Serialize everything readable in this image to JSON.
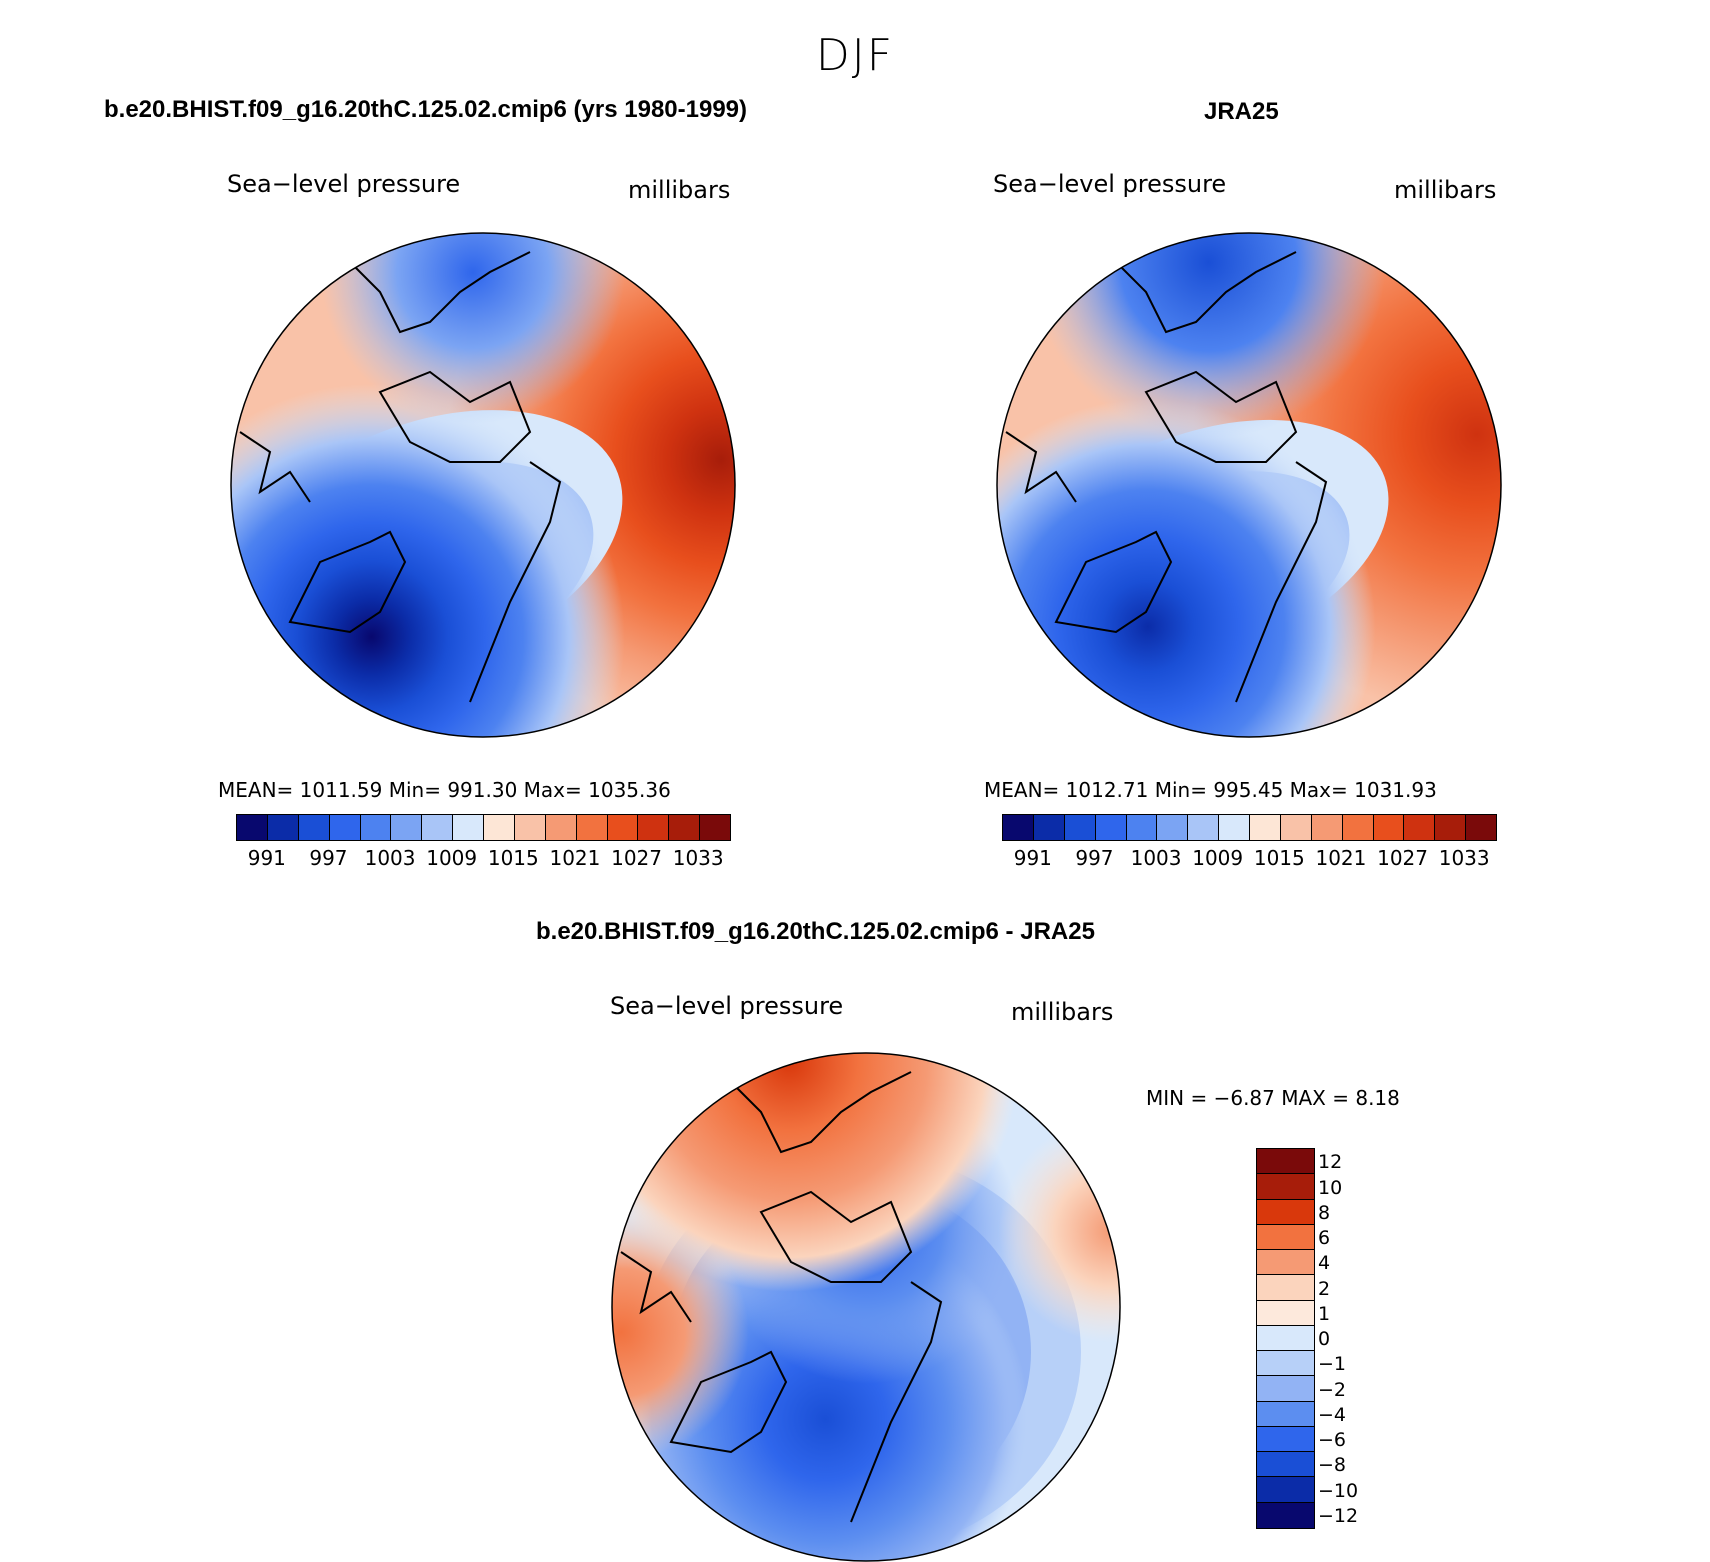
{
  "season": "DJF",
  "panels": [
    {
      "header": "b.e20.BHIST.f09_g16.20thC.125.02.cmip6 (yrs 1980-1999)",
      "left_label": "Sea−level pressure",
      "right_label": "millibars",
      "stats": "MEAN=  1011.59    Min=  991.30    Max=  1035.36"
    },
    {
      "header": "JRA25",
      "left_label": "Sea−level pressure",
      "right_label": "millibars",
      "stats": "MEAN=  1012.71    Min=  995.45    Max=  1031.93"
    },
    {
      "header": "b.e20.BHIST.f09_g16.20thC.125.02.cmip6 - JRA25",
      "left_label": "Sea−level pressure",
      "right_label": "millibars",
      "stats": "MIN =    −6.87  MAX =     8.18"
    }
  ],
  "abs_colorbar": {
    "colors": [
      "#08086e",
      "#0b2ca8",
      "#1a4fd6",
      "#2f66ec",
      "#4d82f0",
      "#7ba4f3",
      "#a9c5f7",
      "#d8e8fb",
      "#fde6d6",
      "#f9c2a8",
      "#f59a74",
      "#f2723f",
      "#e84f1d",
      "#cf3210",
      "#a71d0a",
      "#7a0a0a"
    ],
    "labels": [
      "991",
      "997",
      "1003",
      "1009",
      "1015",
      "1021",
      "1027",
      "1033"
    ]
  },
  "diff_colorbar": {
    "colors": [
      "#7a0a0a",
      "#a71d0a",
      "#d9380c",
      "#f2723f",
      "#f59a74",
      "#fbd4bd",
      "#fde9dc",
      "#d8e8fb",
      "#b7d0f8",
      "#92b3f4",
      "#5c8ef0",
      "#2f66ec",
      "#1a4fd6",
      "#0b2ca8",
      "#08086e"
    ],
    "labels": [
      "12",
      "10",
      "8",
      "6",
      "4",
      "2",
      "1",
      "0",
      "−1",
      "−2",
      "−4",
      "−6",
      "−8",
      "−10",
      "−12"
    ]
  }
}
